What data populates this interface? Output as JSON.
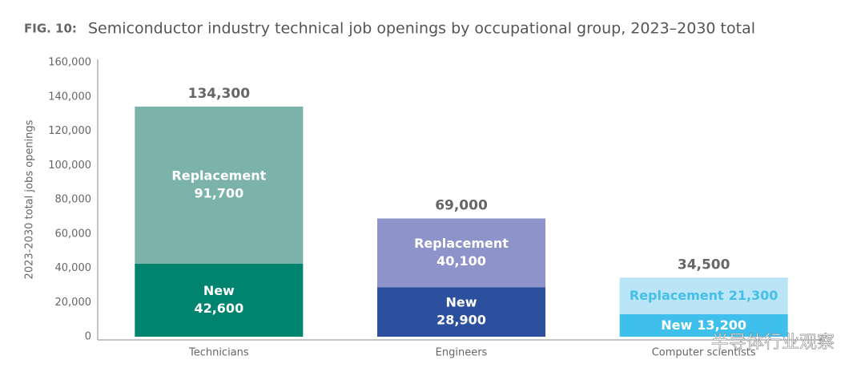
{
  "chart_data": {
    "type": "stacked_bar",
    "figure_label": "FIG. 10:",
    "title": "Semiconductor industry technical job openings by occupational group, 2023–2030 total",
    "y_label": "2023-2030 total jobs openings",
    "categories": [
      "Technicians",
      "Engineers",
      "Computer scientists"
    ],
    "series": [
      {
        "name": "New",
        "values": [
          42600,
          28900,
          13200
        ],
        "value_labels": [
          "42,600",
          "28,900",
          "13,200"
        ],
        "colors": [
          "#00846f",
          "#2c4f9e",
          "#3fc0ec"
        ],
        "label_colors": [
          "#ffffff",
          "#ffffff",
          "#ffffff"
        ]
      },
      {
        "name": "Replacement",
        "values": [
          91700,
          40100,
          21300
        ],
        "value_labels": [
          "91,700",
          "40,100",
          "21,300"
        ],
        "colors": [
          "#7bb3aa",
          "#8e94ca",
          "#b9e5f6"
        ],
        "label_colors": [
          "#ffffff",
          "#ffffff",
          "#45bfe8"
        ]
      }
    ],
    "totals": {
      "values": [
        134300,
        69000,
        34500
      ],
      "value_labels": [
        "134,300",
        "69,000",
        "34,500"
      ]
    },
    "ylim": [
      0,
      160000
    ],
    "yticks": [
      0,
      {
        "value": 20000,
        "label": "20,000"
      },
      {
        "value": 40000,
        "label": "40,000"
      },
      {
        "value": 60000,
        "label": "60,000"
      },
      {
        "value": 80000,
        "label": "80,000"
      },
      {
        "value": 100000,
        "label": "100,000"
      },
      {
        "value": 120000,
        "label": "120,000"
      },
      {
        "value": 140000,
        "label": "140,000"
      },
      {
        "value": 160000,
        "label": "160,000"
      }
    ],
    "watermark": "半导体行业观察"
  }
}
